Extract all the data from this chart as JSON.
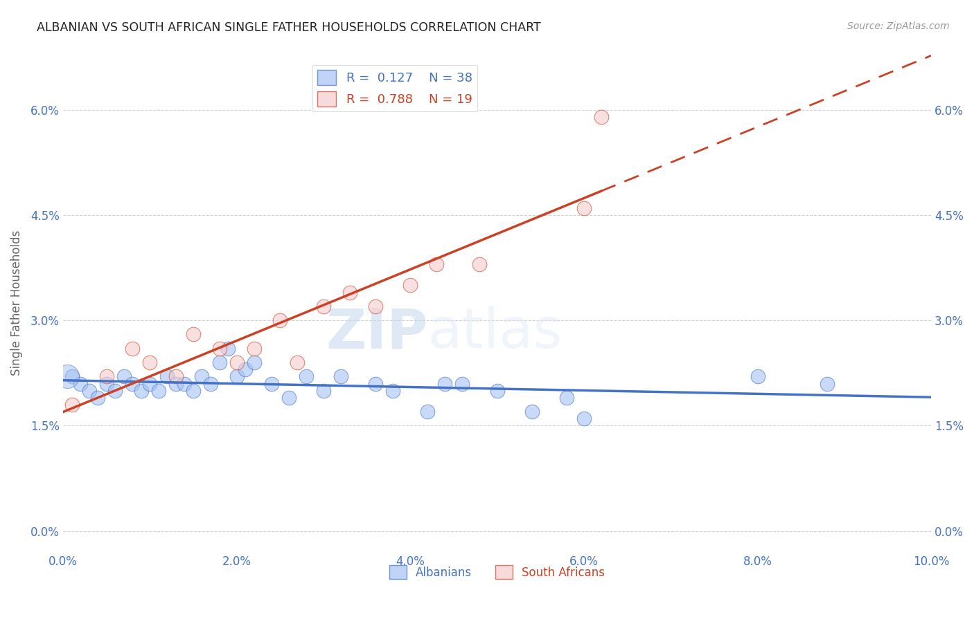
{
  "title": "ALBANIAN VS SOUTH AFRICAN SINGLE FATHER HOUSEHOLDS CORRELATION CHART",
  "source": "Source: ZipAtlas.com",
  "ylabel": "Single Father Households",
  "xlabel_ticks": [
    "0.0%",
    "2.0%",
    "4.0%",
    "6.0%",
    "8.0%",
    "10.0%"
  ],
  "xlabel_vals": [
    0.0,
    0.02,
    0.04,
    0.06,
    0.08,
    0.1
  ],
  "ylabel_ticks": [
    "0.0%",
    "1.5%",
    "3.0%",
    "4.5%",
    "6.0%"
  ],
  "ylabel_vals": [
    0.0,
    0.015,
    0.03,
    0.045,
    0.06
  ],
  "xlim": [
    0.0,
    0.1
  ],
  "ylim": [
    -0.003,
    0.068
  ],
  "albanian_color": "#a4c2f4",
  "sa_color": "#f4cccc",
  "albanian_line_color": "#4472c4",
  "sa_line_color": "#cc4125",
  "legend_R_albanian": "0.127",
  "legend_N_albanian": "38",
  "legend_R_sa": "0.788",
  "legend_N_sa": "19",
  "watermark_zip": "ZIP",
  "watermark_atlas": "atlas",
  "albanian_x": [
    0.001,
    0.002,
    0.003,
    0.004,
    0.005,
    0.006,
    0.007,
    0.008,
    0.009,
    0.01,
    0.011,
    0.012,
    0.013,
    0.014,
    0.015,
    0.016,
    0.017,
    0.018,
    0.019,
    0.02,
    0.021,
    0.022,
    0.024,
    0.026,
    0.028,
    0.03,
    0.032,
    0.036,
    0.038,
    0.042,
    0.044,
    0.046,
    0.05,
    0.054,
    0.058,
    0.06,
    0.08,
    0.088
  ],
  "albanian_y": [
    0.022,
    0.021,
    0.02,
    0.019,
    0.021,
    0.02,
    0.022,
    0.021,
    0.02,
    0.021,
    0.02,
    0.022,
    0.021,
    0.021,
    0.02,
    0.022,
    0.021,
    0.024,
    0.026,
    0.022,
    0.023,
    0.024,
    0.021,
    0.019,
    0.022,
    0.02,
    0.022,
    0.021,
    0.02,
    0.017,
    0.021,
    0.021,
    0.02,
    0.017,
    0.019,
    0.016,
    0.022,
    0.021
  ],
  "albanian_y_actual": [
    0.022,
    0.021,
    0.02,
    0.019,
    0.021,
    0.02,
    0.022,
    0.021,
    0.02,
    0.021,
    0.02,
    0.022,
    0.021,
    0.021,
    0.02,
    0.022,
    0.021,
    0.024,
    0.026,
    0.022,
    0.023,
    0.024,
    0.021,
    0.019,
    0.022,
    0.02,
    0.022,
    0.021,
    0.02,
    0.017,
    0.021,
    0.021,
    0.02,
    0.017,
    0.019,
    0.016,
    0.022,
    0.021
  ],
  "sa_x": [
    0.001,
    0.005,
    0.008,
    0.01,
    0.013,
    0.015,
    0.018,
    0.02,
    0.022,
    0.025,
    0.027,
    0.03,
    0.033,
    0.036,
    0.04,
    0.043,
    0.048,
    0.06,
    0.062
  ],
  "sa_y": [
    0.018,
    0.022,
    0.026,
    0.024,
    0.022,
    0.028,
    0.026,
    0.024,
    0.026,
    0.03,
    0.024,
    0.032,
    0.034,
    0.032,
    0.035,
    0.038,
    0.038,
    0.046,
    0.059
  ]
}
